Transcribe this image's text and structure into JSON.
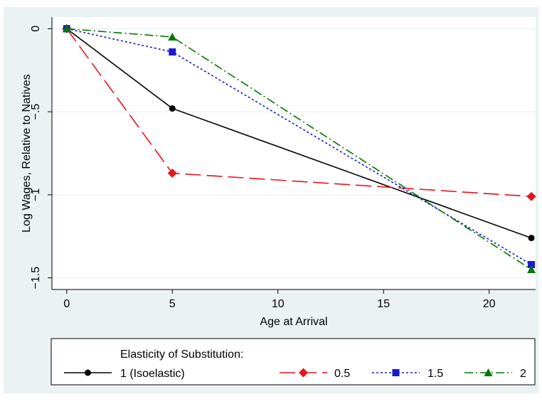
{
  "colors": {
    "background": "#ffffff",
    "panel": "#eaf2f3",
    "plot_bg": "#ffffff",
    "grid": "#eaf2f3",
    "axis": "#000000",
    "text": "#000000"
  },
  "chart_data": {
    "type": "line",
    "title": "",
    "xlabel": "Age at Arrival",
    "ylabel": "Log Wages, Relative to Natives",
    "xlim": [
      -0.7,
      22.2
    ],
    "ylim": [
      -1.57,
      0.07
    ],
    "xticks": [
      0,
      5,
      10,
      15,
      20
    ],
    "xtick_labels": [
      "0",
      "5",
      "10",
      "15",
      "20"
    ],
    "yticks": [
      0,
      -0.5,
      -1,
      -1.5
    ],
    "ytick_labels": [
      "0",
      "−.5",
      "−1",
      "−1.5"
    ],
    "grid": true,
    "legend": {
      "position": "bottom",
      "title": "Elasticity of Substitution:"
    },
    "x": [
      0,
      5,
      22
    ],
    "series": [
      {
        "name": "1 (Isoelastic)",
        "values": [
          0,
          -0.48,
          -1.26
        ],
        "color": "#000000",
        "dash": "",
        "marker": "circle"
      },
      {
        "name": "0.5",
        "values": [
          0,
          -0.87,
          -1.01
        ],
        "color": "#e8141c",
        "dash": "22 8",
        "marker": "diamond"
      },
      {
        "name": "1.5",
        "values": [
          0,
          -0.14,
          -1.42
        ],
        "color": "#1a1acd",
        "dash": "3 3",
        "marker": "square"
      },
      {
        "name": "2",
        "values": [
          0,
          -0.05,
          -1.45
        ],
        "color": "#007800",
        "dash": "12 4 2 4",
        "marker": "triangle"
      }
    ]
  }
}
